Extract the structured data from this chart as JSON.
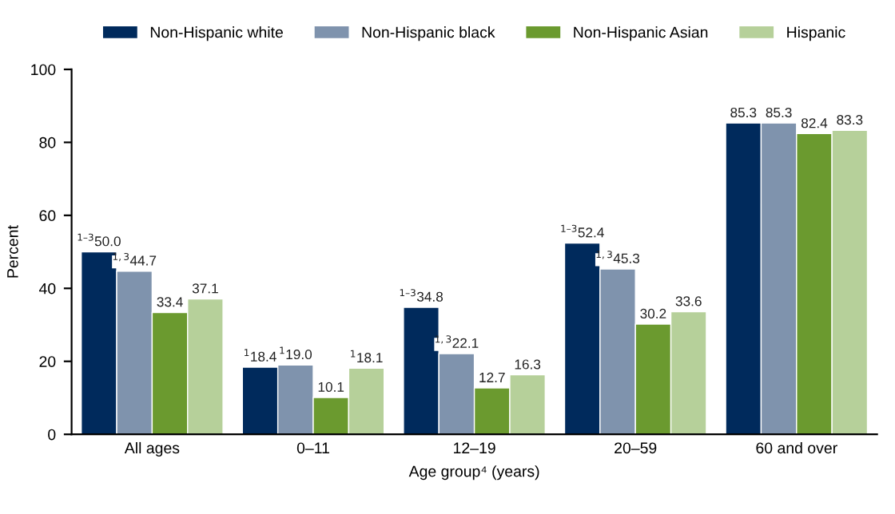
{
  "chart_data": {
    "type": "bar",
    "xlabel": "Age group⁴ (years)",
    "ylabel": "Percent",
    "categories": [
      "All ages",
      "0–11",
      "12–19",
      "20–59",
      "60 and over"
    ],
    "series": [
      {
        "name": "Non-Hispanic white",
        "color": "#002a5c",
        "values": [
          50.0,
          18.4,
          34.8,
          52.4,
          85.3
        ],
        "value_labels": [
          "$^{1–3}$50.0",
          "$^{1}$18.4",
          "$^{1–3}$34.8",
          "$^{1–3}$52.4",
          "85.3"
        ]
      },
      {
        "name": "Non-Hispanic black",
        "color": "#7f93ad",
        "values": [
          44.7,
          19.0,
          22.1,
          45.3,
          85.3
        ],
        "value_labels": [
          "$^{1,3}$44.7",
          "$^{1}$19.0",
          "$^{1,3}$22.1",
          "$^{1,3}$45.3",
          "85.3"
        ]
      },
      {
        "name": "Non-Hispanic Asian",
        "color": "#6b9a2f",
        "values": [
          33.4,
          10.1,
          12.7,
          30.2,
          82.4
        ],
        "value_labels": [
          "33.4",
          "10.1",
          "12.7",
          "30.2",
          "82.4"
        ]
      },
      {
        "name": "Hispanic",
        "color": "#b6d09a",
        "values": [
          37.1,
          18.1,
          16.3,
          33.6,
          83.3
        ],
        "value_labels": [
          "37.1",
          "$^{1}$18.1",
          "16.3",
          "33.6",
          "83.3"
        ]
      }
    ],
    "ylim": [
      0,
      100
    ],
    "yticks": [
      0,
      20,
      40,
      60,
      80,
      100
    ],
    "grid": false,
    "legend": "top"
  }
}
